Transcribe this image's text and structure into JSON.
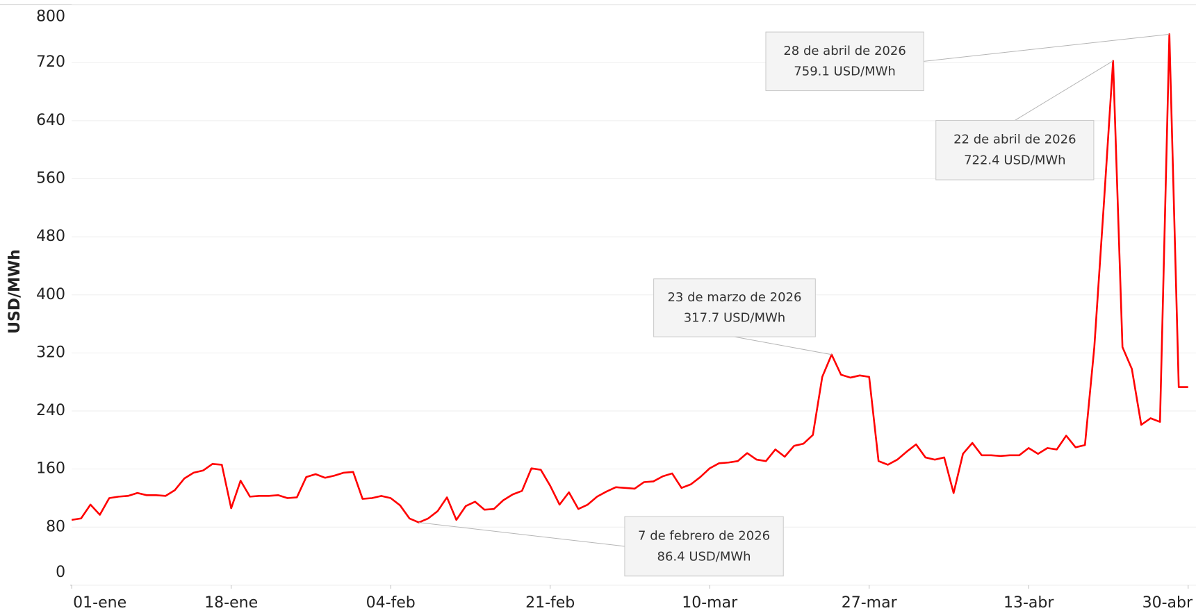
{
  "chart_data": {
    "type": "line",
    "y_label": "USD/MWh",
    "categories": [
      "01-ene",
      null,
      null,
      null,
      null,
      null,
      null,
      null,
      null,
      null,
      null,
      null,
      null,
      null,
      null,
      null,
      null,
      "18-ene",
      null,
      null,
      null,
      null,
      null,
      null,
      null,
      null,
      null,
      null,
      null,
      null,
      null,
      null,
      null,
      null,
      "04-feb",
      null,
      null,
      null,
      null,
      null,
      null,
      null,
      null,
      null,
      null,
      null,
      null,
      null,
      null,
      null,
      null,
      "21-feb",
      null,
      null,
      null,
      null,
      null,
      null,
      null,
      null,
      null,
      null,
      null,
      null,
      null,
      null,
      null,
      null,
      "10-mar",
      null,
      null,
      null,
      null,
      null,
      null,
      null,
      null,
      null,
      null,
      null,
      null,
      null,
      null,
      null,
      null,
      "27-mar",
      null,
      null,
      null,
      null,
      null,
      null,
      null,
      null,
      null,
      null,
      null,
      null,
      null,
      null,
      null,
      null,
      "13-abr",
      null,
      null,
      null,
      null,
      null,
      null,
      null,
      null,
      null,
      null,
      null,
      null,
      null,
      null,
      null,
      null,
      "30-abr"
    ],
    "series": [
      {
        "name": "USD/MWh",
        "color": "#ff0000",
        "values": [
          90,
          92,
          111,
          97,
          120,
          122,
          123,
          127,
          124,
          124,
          123,
          131,
          147,
          155,
          158,
          167,
          166,
          106,
          144,
          122,
          123,
          123,
          124,
          120,
          121,
          149,
          153,
          148,
          151,
          155,
          156,
          119,
          120,
          123,
          120,
          110,
          92,
          86.4,
          92,
          102,
          121,
          90,
          109,
          115,
          104,
          105,
          117,
          125,
          130,
          161,
          159,
          137,
          111,
          128,
          105,
          111,
          122,
          129,
          135,
          134,
          133,
          142,
          143,
          150,
          154,
          134,
          139,
          149,
          161,
          168,
          169,
          171,
          182,
          173,
          171,
          187,
          177,
          192,
          195,
          207,
          287,
          317.7,
          290,
          286,
          289,
          287,
          171,
          166,
          173,
          184,
          194,
          176,
          173,
          176,
          127,
          181,
          196,
          179,
          179,
          178,
          179,
          179,
          189,
          181,
          189,
          187,
          206,
          190,
          193,
          328,
          522,
          722.4,
          328,
          298,
          221,
          230,
          225,
          759.1,
          273,
          273
        ]
      }
    ],
    "ylim": [
      0,
      800
    ],
    "yticks": [
      0,
      80,
      160,
      240,
      320,
      400,
      480,
      560,
      640,
      720,
      800
    ],
    "grid": true,
    "annotations": [
      {
        "date": "28 de abril de 2026",
        "value_label": "759.1 USD/MWh"
      },
      {
        "date": "22 de abril de 2026",
        "value_label": "722.4 USD/MWh"
      },
      {
        "date": "23 de marzo de 2026",
        "value_label": "317.7 USD/MWh"
      },
      {
        "date": "7 de febrero de 2026",
        "value_label": "86.4 USD/MWh"
      }
    ]
  }
}
